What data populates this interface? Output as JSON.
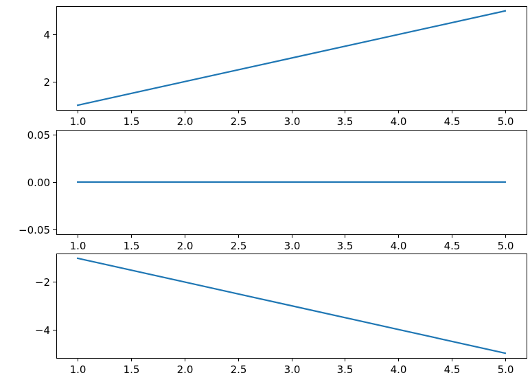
{
  "colors": {
    "line": "#1f77b4"
  },
  "chart_data": [
    {
      "type": "line",
      "title": "",
      "xlabel": "",
      "ylabel": "",
      "x": [
        1.0,
        2.0,
        3.0,
        4.0,
        5.0
      ],
      "series": [
        {
          "values": [
            1,
            2,
            3,
            4,
            5
          ]
        }
      ],
      "xlim": [
        0.8,
        5.2
      ],
      "ylim": [
        0.8,
        5.2
      ],
      "xticks": [
        1.0,
        1.5,
        2.0,
        2.5,
        3.0,
        3.5,
        4.0,
        4.5,
        5.0
      ],
      "xtick_labels": [
        "1.0",
        "1.5",
        "2.0",
        "2.5",
        "3.0",
        "3.5",
        "4.0",
        "4.5",
        "5.0"
      ],
      "yticks": [
        2,
        4
      ],
      "ytick_labels": [
        "2",
        "4"
      ],
      "grid": false,
      "legend": "none"
    },
    {
      "type": "line",
      "title": "",
      "xlabel": "",
      "ylabel": "",
      "x": [
        1.0,
        2.0,
        3.0,
        4.0,
        5.0
      ],
      "series": [
        {
          "values": [
            0,
            0,
            0,
            0,
            0
          ]
        }
      ],
      "xlim": [
        0.8,
        5.2
      ],
      "ylim": [
        -0.055,
        0.055
      ],
      "xticks": [
        1.0,
        1.5,
        2.0,
        2.5,
        3.0,
        3.5,
        4.0,
        4.5,
        5.0
      ],
      "xtick_labels": [
        "1.0",
        "1.5",
        "2.0",
        "2.5",
        "3.0",
        "3.5",
        "4.0",
        "4.5",
        "5.0"
      ],
      "yticks": [
        0.05,
        0.0,
        -0.05
      ],
      "ytick_labels": [
        "0.05",
        "0.00",
        "−0.05"
      ],
      "grid": false,
      "legend": "none"
    },
    {
      "type": "line",
      "title": "",
      "xlabel": "",
      "ylabel": "",
      "x": [
        1.0,
        2.0,
        3.0,
        4.0,
        5.0
      ],
      "series": [
        {
          "values": [
            -1,
            -2,
            -3,
            -4,
            -5
          ]
        }
      ],
      "xlim": [
        0.8,
        5.2
      ],
      "ylim": [
        -5.2,
        -0.8
      ],
      "xticks": [
        1.0,
        1.5,
        2.0,
        2.5,
        3.0,
        3.5,
        4.0,
        4.5,
        5.0
      ],
      "xtick_labels": [
        "1.0",
        "1.5",
        "2.0",
        "2.5",
        "3.0",
        "3.5",
        "4.0",
        "4.5",
        "5.0"
      ],
      "yticks": [
        -2,
        -4
      ],
      "ytick_labels": [
        "−2",
        "−4"
      ],
      "grid": false,
      "legend": "none"
    }
  ]
}
